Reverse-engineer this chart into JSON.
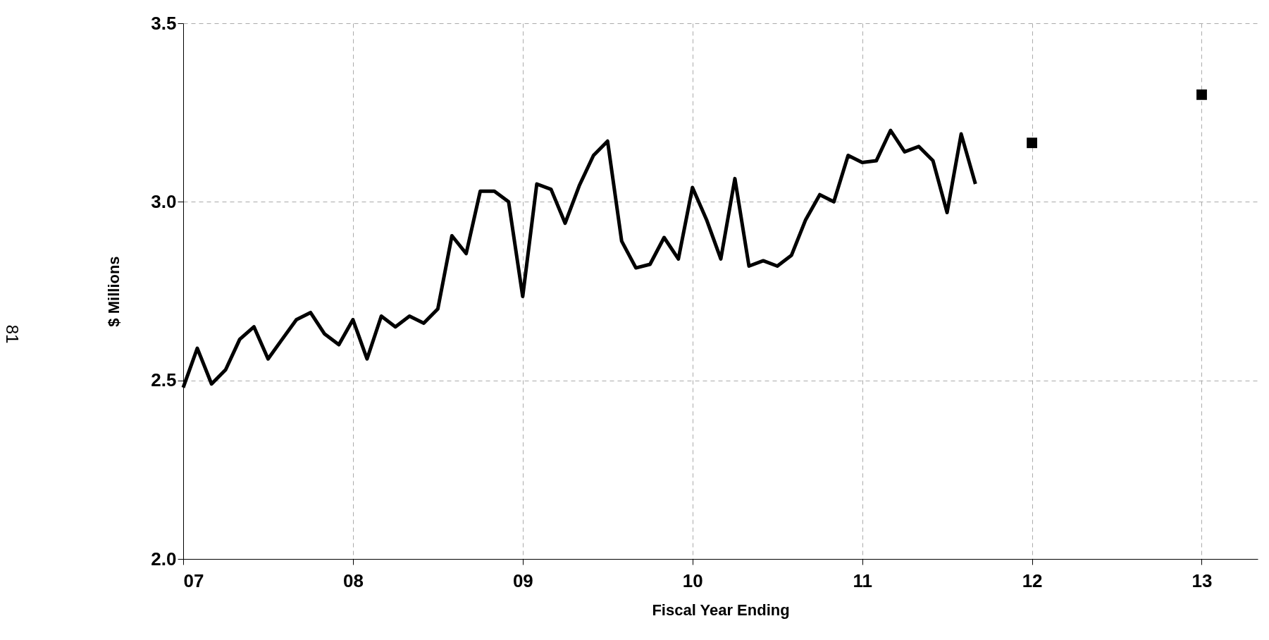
{
  "chart_data": {
    "type": "line",
    "xlabel": "Fiscal Year Ending",
    "ylabel": "$ Millions",
    "annotations": [
      "81"
    ],
    "xlim": [
      7,
      13.33
    ],
    "xticks": [
      {
        "value": 7,
        "label": "07"
      },
      {
        "value": 8,
        "label": "08"
      },
      {
        "value": 9,
        "label": "09"
      },
      {
        "value": 10,
        "label": "10"
      },
      {
        "value": 11,
        "label": "11"
      },
      {
        "value": 12,
        "label": "12"
      },
      {
        "value": 13,
        "label": "13"
      }
    ],
    "ylim": [
      2.0,
      3.5
    ],
    "yticks": [
      {
        "value": 2,
        "label": "2.0"
      },
      {
        "value": 2.5,
        "label": "2.5"
      },
      {
        "value": 3,
        "label": "3.0"
      },
      {
        "value": 3.5,
        "label": "3.5"
      }
    ],
    "grid": true,
    "line_style": "solid",
    "series": [
      {
        "color": "#000000",
        "marker": "none",
        "x": [
          7,
          7.083,
          7.167,
          7.25,
          7.333,
          7.417,
          7.5,
          7.583,
          7.667,
          7.75,
          7.833,
          7.917,
          8,
          8.083,
          8.167,
          8.25,
          8.333,
          8.417,
          8.5,
          8.583,
          8.667,
          8.75,
          8.833,
          8.917,
          9,
          9.083,
          9.167,
          9.25,
          9.333,
          9.417,
          9.5,
          9.583,
          9.667,
          9.75,
          9.833,
          9.917,
          10,
          10.083,
          10.167,
          10.25,
          10.333,
          10.417,
          10.5,
          10.583,
          10.667,
          10.75,
          10.833,
          10.917,
          11,
          11.083,
          11.167,
          11.25,
          11.333,
          11.417,
          11.5,
          11.583,
          11.667
        ],
        "values": [
          2.48,
          2.59,
          2.49,
          2.53,
          2.615,
          2.65,
          2.56,
          2.615,
          2.67,
          2.69,
          2.63,
          2.6,
          2.67,
          2.56,
          2.68,
          2.65,
          2.68,
          2.66,
          2.7,
          2.905,
          2.855,
          3.03,
          3.03,
          3.0,
          2.735,
          3.05,
          3.035,
          2.94,
          3.045,
          3.13,
          3.17,
          2.89,
          2.815,
          2.825,
          2.9,
          2.84,
          3.04,
          2.95,
          2.84,
          3.065,
          2.82,
          2.835,
          2.82,
          2.85,
          2.95,
          3.02,
          3.0,
          3.13,
          3.11,
          3.115,
          3.2,
          3.14,
          3.155,
          3.115,
          2.97,
          3.19,
          3.05
        ]
      },
      {
        "type": "scatter",
        "color": "#000000",
        "marker": "square",
        "x": [
          12,
          13
        ],
        "values": [
          3.165,
          3.3
        ]
      }
    ]
  }
}
